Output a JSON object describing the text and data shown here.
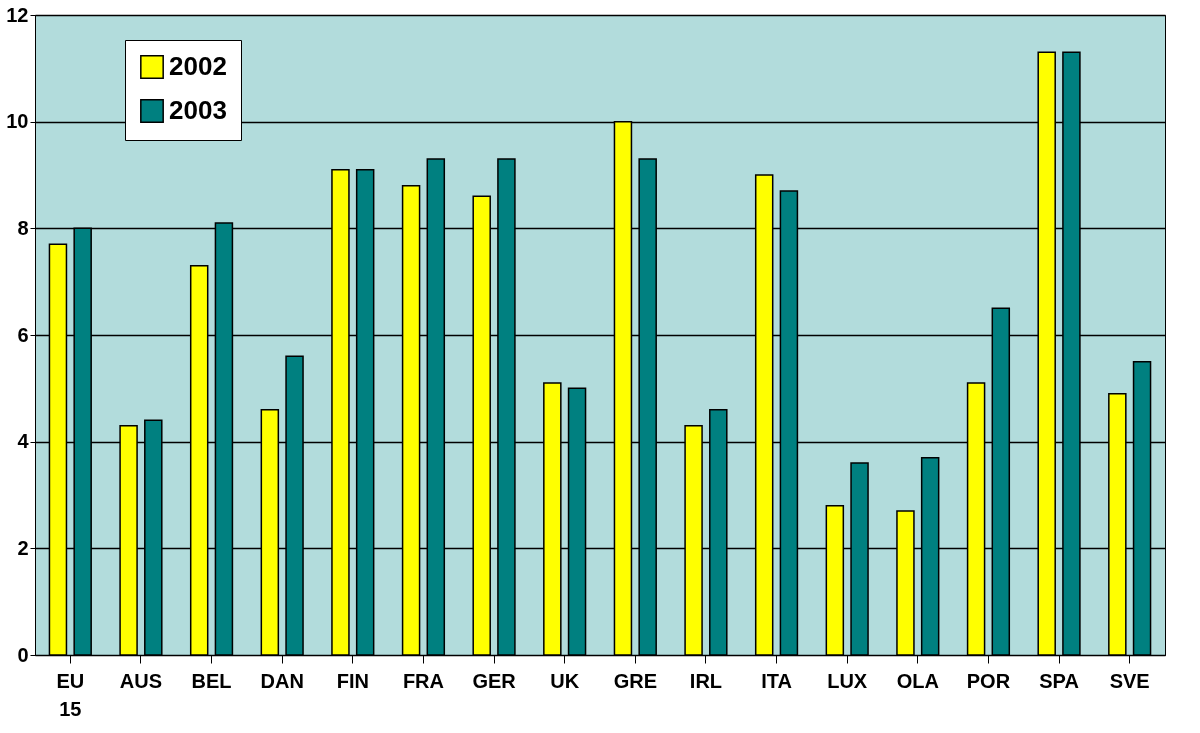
{
  "chart_data": {
    "type": "bar",
    "categories": [
      "EU 15",
      "AUS",
      "BEL",
      "DAN",
      "FIN",
      "FRA",
      "GER",
      "UK",
      "GRE",
      "IRL",
      "ITA",
      "LUX",
      "OLA",
      "POR",
      "SPA",
      "SVE"
    ],
    "series": [
      {
        "name": "2002",
        "color": "#ffff00",
        "values": [
          7.7,
          4.3,
          7.3,
          4.6,
          9.1,
          8.8,
          8.6,
          5.1,
          10.0,
          4.3,
          9.0,
          2.8,
          2.7,
          5.1,
          11.3,
          4.9
        ]
      },
      {
        "name": "2003",
        "color": "#008080",
        "values": [
          8.0,
          4.4,
          8.1,
          5.6,
          9.1,
          9.3,
          9.3,
          5.0,
          9.3,
          4.6,
          8.7,
          3.6,
          3.7,
          6.5,
          11.3,
          5.5
        ]
      }
    ],
    "ylim": [
      0,
      12
    ],
    "yticks": [
      0,
      2,
      4,
      6,
      8,
      10,
      12
    ],
    "grid": "y",
    "legend": "top left"
  }
}
